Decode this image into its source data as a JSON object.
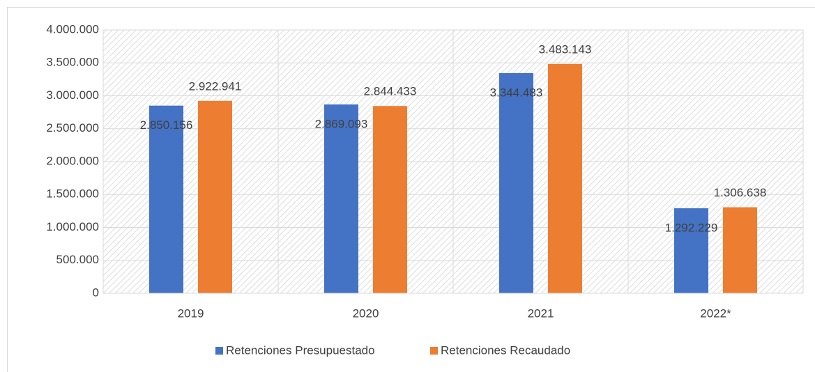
{
  "chart_data": {
    "type": "bar",
    "categories": [
      "2019",
      "2020",
      "2021",
      "2022*"
    ],
    "series": [
      {
        "name": "Retenciones Presupuestado",
        "color": "#4472c4",
        "values": [
          2850156,
          2869093,
          3344483,
          1292229
        ],
        "value_labels": [
          "2.850.156",
          "2.869.093",
          "3.344.483",
          "1.292.229"
        ]
      },
      {
        "name": "Retenciones Recaudado",
        "color": "#ed7d31",
        "values": [
          2922941,
          2844433,
          3483143,
          1306638
        ],
        "value_labels": [
          "2.922.941",
          "2.844.433",
          "3.483.143",
          "1.306.638"
        ]
      }
    ],
    "ylim": [
      0,
      4000000
    ],
    "yticks": [
      {
        "value": 0,
        "label": "0"
      },
      {
        "value": 500000,
        "label": "500.000"
      },
      {
        "value": 1000000,
        "label": "1.000.000"
      },
      {
        "value": 1500000,
        "label": "1.500.000"
      },
      {
        "value": 2000000,
        "label": "2.000.000"
      },
      {
        "value": 2500000,
        "label": "2.500.000"
      },
      {
        "value": 3000000,
        "label": "3.000.000"
      },
      {
        "value": 3500000,
        "label": "3.500.000"
      },
      {
        "value": 4000000,
        "label": "4.000.000"
      }
    ],
    "grid": true,
    "legend": "bottom"
  }
}
